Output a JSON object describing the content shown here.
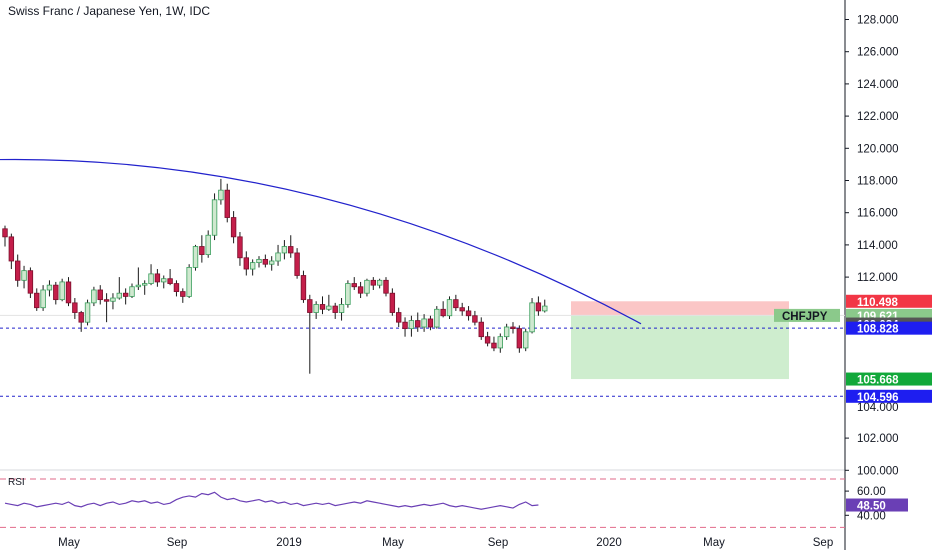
{
  "header": {
    "title": "Swiss Franc / Japanese Yen, 1W, IDC"
  },
  "rsi": {
    "label": "RSI",
    "value_label": "48.50",
    "value": 48.5,
    "levels": [
      "60.00",
      "40.00"
    ],
    "bands": [
      70,
      30
    ]
  },
  "price_axis": {
    "ticks": [
      "128.000",
      "126.000",
      "124.000",
      "122.000",
      "120.000",
      "118.000",
      "116.000",
      "114.000",
      "112.000",
      "102.000",
      "100.000"
    ],
    "badges": [
      {
        "label": "110.498",
        "value": 110.498,
        "color": "#f23645"
      },
      {
        "label": "109.621",
        "value": 109.621,
        "color": "#8bc98b"
      },
      {
        "label": "109.084",
        "value": 109.084,
        "color": "#555555"
      },
      {
        "label": "108.828",
        "value": 108.828,
        "color": "#1e1ef0"
      },
      {
        "label": "105.668",
        "value": 105.668,
        "color": "#11a83a"
      },
      {
        "label": "104.596",
        "value": 104.596,
        "color": "#1e1ef0"
      }
    ],
    "faint_label": "104.000"
  },
  "symbol_tag": {
    "label": "CHFJPY",
    "value": 109.621,
    "color": "#8bc98b"
  },
  "time_axis": {
    "labels": [
      "May",
      "Sep",
      "2019",
      "May",
      "Sep",
      "2020",
      "May",
      "Sep"
    ]
  },
  "colors": {
    "up": "#3a9e5c",
    "up_fill": "#cfe8cf",
    "down": "#c41e4a",
    "trendline": "#2222cc",
    "stop_zone": "#f9b3b3",
    "target_zone": "#c6eac6",
    "rsi_line": "#6a3fb5",
    "rsi_band": "#e26a8a"
  },
  "chart_data": {
    "type": "candlestick",
    "title": "Swiss Franc / Japanese Yen, 1W, IDC",
    "symbol": "CHFJPY",
    "interval": "1W",
    "ylim": [
      99.0,
      129.5
    ],
    "x_labels": [
      "May",
      "Sep",
      "2019",
      "May",
      "Sep",
      "2020",
      "May",
      "Sep"
    ],
    "candles_ohlc": [
      [
        115.0,
        115.2,
        113.9,
        114.5
      ],
      [
        114.5,
        114.7,
        112.5,
        113.0
      ],
      [
        113.0,
        113.4,
        111.4,
        111.8
      ],
      [
        111.8,
        112.7,
        111.3,
        112.4
      ],
      [
        112.4,
        112.6,
        110.7,
        111.0
      ],
      [
        111.0,
        111.3,
        109.9,
        110.1
      ],
      [
        110.1,
        111.5,
        109.9,
        111.2
      ],
      [
        111.2,
        111.8,
        110.8,
        111.5
      ],
      [
        111.5,
        111.7,
        110.3,
        110.6
      ],
      [
        110.6,
        111.9,
        110.5,
        111.7
      ],
      [
        111.7,
        112.0,
        110.2,
        110.4
      ],
      [
        110.4,
        110.7,
        109.4,
        109.8
      ],
      [
        109.8,
        109.9,
        108.6,
        109.2
      ],
      [
        109.2,
        110.6,
        109.0,
        110.4
      ],
      [
        110.4,
        111.4,
        110.2,
        111.2
      ],
      [
        111.2,
        111.5,
        110.3,
        110.6
      ],
      [
        110.6,
        111.0,
        109.2,
        110.5
      ],
      [
        110.5,
        111.0,
        110.0,
        110.7
      ],
      [
        110.7,
        112.0,
        110.6,
        111.0
      ],
      [
        111.0,
        111.3,
        110.3,
        110.8
      ],
      [
        110.8,
        111.6,
        110.7,
        111.4
      ],
      [
        111.4,
        112.6,
        111.2,
        111.5
      ],
      [
        111.5,
        111.8,
        110.9,
        111.6
      ],
      [
        111.6,
        112.8,
        111.5,
        112.2
      ],
      [
        112.2,
        112.5,
        111.4,
        111.7
      ],
      [
        111.7,
        112.1,
        111.3,
        111.9
      ],
      [
        111.9,
        112.5,
        111.5,
        111.6
      ],
      [
        111.6,
        111.8,
        110.8,
        111.1
      ],
      [
        111.1,
        111.3,
        110.4,
        110.8
      ],
      [
        110.8,
        112.8,
        110.7,
        112.6
      ],
      [
        112.6,
        114.0,
        112.4,
        113.9
      ],
      [
        113.9,
        114.6,
        112.9,
        113.4
      ],
      [
        113.4,
        114.9,
        113.2,
        114.6
      ],
      [
        114.6,
        117.2,
        114.3,
        116.8
      ],
      [
        116.8,
        118.1,
        116.5,
        117.4
      ],
      [
        117.4,
        117.8,
        115.4,
        115.7
      ],
      [
        115.7,
        116.1,
        114.1,
        114.5
      ],
      [
        114.5,
        114.8,
        112.7,
        113.2
      ],
      [
        113.2,
        113.6,
        112.1,
        112.5
      ],
      [
        112.5,
        113.1,
        112.1,
        112.9
      ],
      [
        112.9,
        113.3,
        112.6,
        113.1
      ],
      [
        113.1,
        113.4,
        112.6,
        112.8
      ],
      [
        112.8,
        113.3,
        112.4,
        113.0
      ],
      [
        113.0,
        114.0,
        112.7,
        113.5
      ],
      [
        113.5,
        114.3,
        113.1,
        113.9
      ],
      [
        113.9,
        114.6,
        113.2,
        113.5
      ],
      [
        113.5,
        113.8,
        111.9,
        112.1
      ],
      [
        112.1,
        112.4,
        110.4,
        110.6
      ],
      [
        110.6,
        110.9,
        106.0,
        109.8
      ],
      [
        109.8,
        110.5,
        109.4,
        110.3
      ],
      [
        110.3,
        110.8,
        109.7,
        110.0
      ],
      [
        110.0,
        110.9,
        109.9,
        110.2
      ],
      [
        110.2,
        110.4,
        109.4,
        109.8
      ],
      [
        109.8,
        110.7,
        109.3,
        110.3
      ],
      [
        110.3,
        111.8,
        110.1,
        111.6
      ],
      [
        111.6,
        112.0,
        111.2,
        111.4
      ],
      [
        111.4,
        111.7,
        110.7,
        111.0
      ],
      [
        111.0,
        111.9,
        110.8,
        111.8
      ],
      [
        111.8,
        112.0,
        111.2,
        111.5
      ],
      [
        111.5,
        111.9,
        111.3,
        111.8
      ],
      [
        111.8,
        112.0,
        110.8,
        111.0
      ],
      [
        111.0,
        111.3,
        109.6,
        109.8
      ],
      [
        109.8,
        110.1,
        108.9,
        109.2
      ],
      [
        109.2,
        109.5,
        108.3,
        108.8
      ],
      [
        108.8,
        109.6,
        108.3,
        109.3
      ],
      [
        109.3,
        109.8,
        108.6,
        108.9
      ],
      [
        108.9,
        109.7,
        108.6,
        109.4
      ],
      [
        109.4,
        109.6,
        108.7,
        108.9
      ],
      [
        108.9,
        110.2,
        108.8,
        110.0
      ],
      [
        110.0,
        110.5,
        109.5,
        109.6
      ],
      [
        109.6,
        110.8,
        109.4,
        110.6
      ],
      [
        110.6,
        110.9,
        109.9,
        110.1
      ],
      [
        110.1,
        110.4,
        109.6,
        109.9
      ],
      [
        109.9,
        110.2,
        109.3,
        109.6
      ],
      [
        109.6,
        109.9,
        109.0,
        109.2
      ],
      [
        109.2,
        109.5,
        108.1,
        108.3
      ],
      [
        108.3,
        108.6,
        107.7,
        107.9
      ],
      [
        107.9,
        108.3,
        107.4,
        107.6
      ],
      [
        107.6,
        108.5,
        107.3,
        108.3
      ],
      [
        108.3,
        109.1,
        108.1,
        108.9
      ],
      [
        108.9,
        109.2,
        108.5,
        108.8
      ],
      [
        108.8,
        109.0,
        107.3,
        107.6
      ],
      [
        107.6,
        108.8,
        107.4,
        108.6
      ],
      [
        108.6,
        110.7,
        108.5,
        110.4
      ],
      [
        110.4,
        110.8,
        109.6,
        109.9
      ],
      [
        109.9,
        110.6,
        109.8,
        110.2
      ]
    ],
    "trendline": {
      "from_price": 119.3,
      "to_price": 109.1,
      "shape": "concave-down"
    },
    "horizontal_lines": [
      108.828,
      104.596
    ],
    "position": {
      "entry": 109.621,
      "stop": 110.498,
      "target": 105.668
    },
    "rsi_series": [
      50,
      49,
      48,
      50,
      49,
      47,
      48,
      49,
      50,
      49,
      51,
      48,
      47,
      49,
      50,
      48,
      50,
      51,
      49,
      50,
      52,
      51,
      52,
      50,
      51,
      49,
      50,
      53,
      55,
      56,
      55,
      58,
      57,
      59,
      55,
      53,
      54,
      52,
      51,
      52,
      53,
      51,
      52,
      50,
      51,
      49,
      50,
      48,
      49,
      50,
      49,
      50,
      48,
      49,
      50,
      51,
      50,
      52,
      51,
      50,
      49,
      48,
      47,
      48,
      47,
      48,
      49,
      48,
      49,
      50,
      48,
      47,
      48,
      47,
      46,
      45,
      46,
      47,
      48,
      47,
      46,
      49,
      51,
      48,
      48.5
    ]
  }
}
